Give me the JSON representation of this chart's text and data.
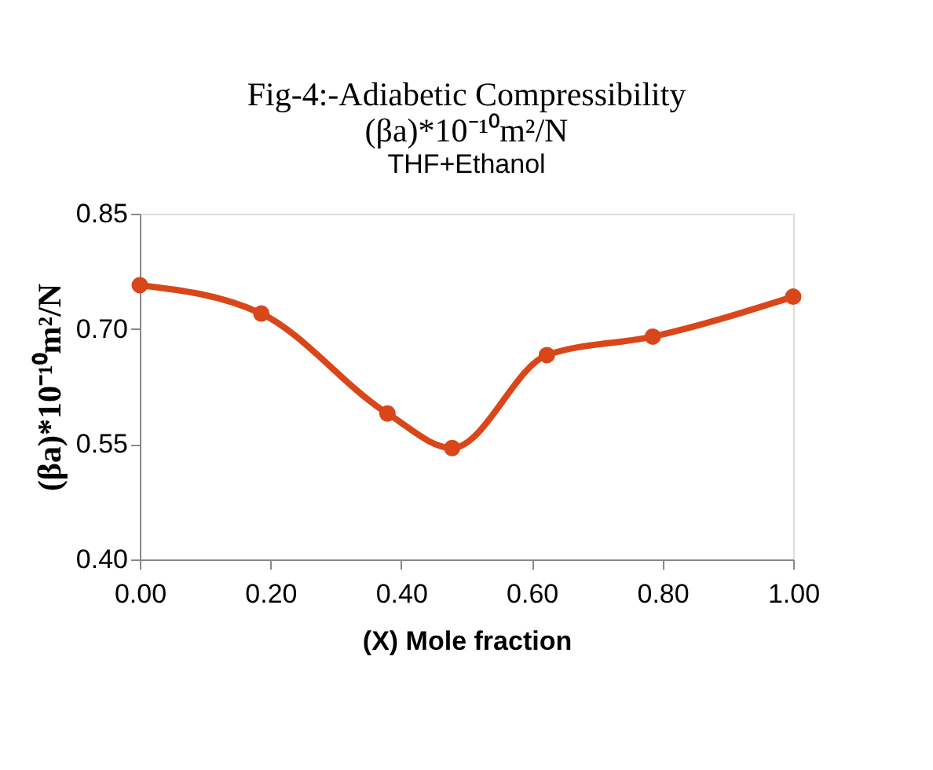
{
  "chart_data": {
    "type": "line",
    "title": [
      "Fig-4:-Adiabetic Compressibility",
      "(βa)*10⁻¹⁰m²/N"
    ],
    "subtitle": "THF+Ethanol",
    "xlabel": "(X) Mole  fraction",
    "ylabel": "(βa)*10⁻¹⁰m²/N",
    "x": [
      0.0,
      0.186,
      0.379,
      0.478,
      0.623,
      0.785,
      1.0
    ],
    "series": [
      {
        "color": "#d9461a",
        "values": [
          0.757,
          0.72,
          0.59,
          0.545,
          0.666,
          0.69,
          0.742
        ]
      }
    ],
    "xlim": [
      0,
      1
    ],
    "xticks": [
      {
        "value": 0,
        "label": "0.00"
      },
      {
        "value": 0.2,
        "label": "0.20"
      },
      {
        "value": 0.4,
        "label": "0.40"
      },
      {
        "value": 0.6,
        "label": "0.60"
      },
      {
        "value": 0.8,
        "label": "0.80"
      },
      {
        "value": 1,
        "label": "1.00"
      }
    ],
    "ylim": [
      0.4,
      0.85
    ],
    "yticks": [
      {
        "value": 0.4,
        "label": "0.40"
      },
      {
        "value": 0.55,
        "label": "0.55"
      },
      {
        "value": 0.7,
        "label": "0.70"
      },
      {
        "value": 0.85,
        "label": "0.85"
      }
    ],
    "marker": "circle",
    "line_style": "solid"
  }
}
